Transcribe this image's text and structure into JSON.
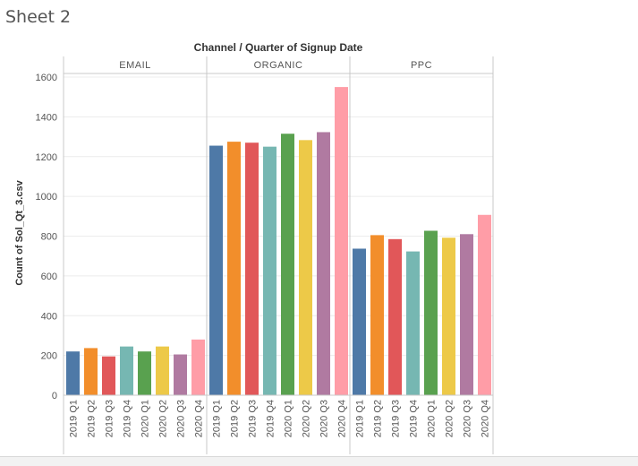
{
  "sheet": {
    "title": "Sheet 2"
  },
  "chart_data": {
    "type": "bar",
    "title": "Channel / Quarter of Signup Date",
    "ylabel": "Count of Sol_Qt_3.csv",
    "ylim": [
      0,
      1650
    ],
    "yticks": [
      0,
      200,
      400,
      600,
      800,
      1000,
      1200,
      1400,
      1600
    ],
    "categories": [
      "2019 Q1",
      "2019 Q2",
      "2019 Q3",
      "2019 Q4",
      "2020 Q1",
      "2020 Q2",
      "2020 Q3",
      "2020 Q4"
    ],
    "colors": [
      "#4e79a7",
      "#f28e2b",
      "#e15759",
      "#76b7b2",
      "#59a14f",
      "#edc948",
      "#b07aa1",
      "#ff9da7"
    ],
    "panels": [
      {
        "name": "EMAIL",
        "values": [
          220,
          237,
          195,
          245,
          220,
          245,
          205,
          280
        ]
      },
      {
        "name": "ORGANIC",
        "values": [
          1255,
          1275,
          1270,
          1250,
          1315,
          1283,
          1323,
          1550
        ]
      },
      {
        "name": "PPC",
        "values": [
          737,
          805,
          785,
          723,
          827,
          792,
          810,
          907
        ]
      }
    ],
    "grid": true,
    "legend": "none"
  }
}
